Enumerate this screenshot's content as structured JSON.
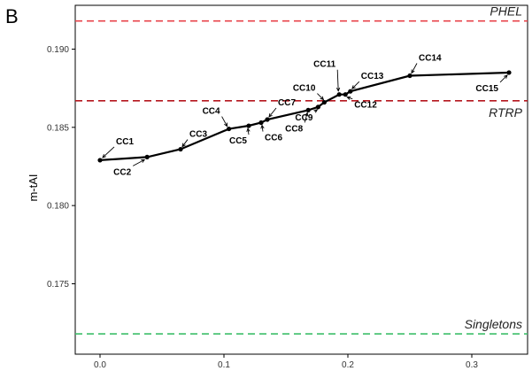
{
  "panel_label": "B",
  "chart_data": {
    "type": "line",
    "title": "",
    "xlabel": "",
    "ylabel": "m-tAI",
    "xlim": [
      -0.02,
      0.345
    ],
    "ylim": [
      0.1705,
      0.1928
    ],
    "x_ticks": [
      0.0,
      0.1,
      0.2,
      0.3
    ],
    "x_tick_labels": [
      "0.0",
      "0.1",
      "0.2",
      "0.3"
    ],
    "y_ticks": [
      0.175,
      0.18,
      0.185,
      0.19
    ],
    "y_tick_labels": [
      "0.175",
      "0.180",
      "0.185",
      "0.190"
    ],
    "grid": false,
    "series": [
      {
        "color": "#000000",
        "points": [
          {
            "label": "CC1",
            "x": 0.0,
            "y": 0.1829
          },
          {
            "label": "CC2",
            "x": 0.038,
            "y": 0.1831
          },
          {
            "label": "CC3",
            "x": 0.065,
            "y": 0.1836
          },
          {
            "label": "CC4",
            "x": 0.104,
            "y": 0.1849
          },
          {
            "label": "CC5",
            "x": 0.12,
            "y": 0.1851
          },
          {
            "label": "CC6",
            "x": 0.13,
            "y": 0.1853
          },
          {
            "label": "CC7",
            "x": 0.135,
            "y": 0.1855
          },
          {
            "label": "CC8",
            "x": 0.168,
            "y": 0.1861
          },
          {
            "label": "CC9",
            "x": 0.176,
            "y": 0.1863
          },
          {
            "label": "CC10",
            "x": 0.181,
            "y": 0.1866
          },
          {
            "label": "CC11",
            "x": 0.193,
            "y": 0.1871
          },
          {
            "label": "CC12",
            "x": 0.198,
            "y": 0.1871
          },
          {
            "label": "CC13",
            "x": 0.202,
            "y": 0.1873
          },
          {
            "label": "CC14",
            "x": 0.25,
            "y": 0.1883
          },
          {
            "label": "CC15",
            "x": 0.33,
            "y": 0.1885
          }
        ]
      }
    ],
    "reference_lines": [
      {
        "label": "PHEL",
        "y": 0.1918,
        "color": "#e8434b"
      },
      {
        "label": "RTRP",
        "y": 0.1867,
        "color": "#b5161e"
      },
      {
        "label": "Singletons",
        "y": 0.1718,
        "color": "#3fbf6a"
      }
    ]
  }
}
